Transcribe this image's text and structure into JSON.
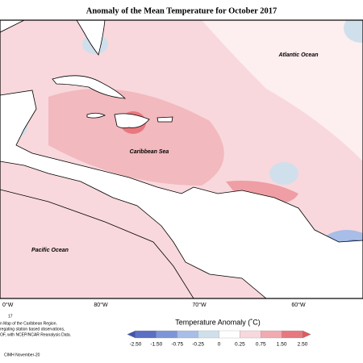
{
  "title": "Anomaly of the Mean Temperature for October 2017",
  "labels": {
    "atlantic": "Atlantic Ocean",
    "caribbean": "Caribbean Sea",
    "pacific": "Pacific Ocean"
  },
  "longitudes": [
    "0°W",
    "80°W",
    "70°W",
    "60°W"
  ],
  "legend": {
    "title": "Temperature Anomaly (˚C)",
    "ticks": [
      "-2.50",
      "-1.50",
      "-0.75",
      "-0.25",
      "0",
      "0.25",
      "0.75",
      "1.50",
      "2.50"
    ]
  },
  "notes": [
    "17",
    "n Map of the Caribbean Region.",
    "regating station based observations,",
    "OF, with NCEP/NCAR Reanalysis Data.",
    "CIMH November-20"
  ]
}
